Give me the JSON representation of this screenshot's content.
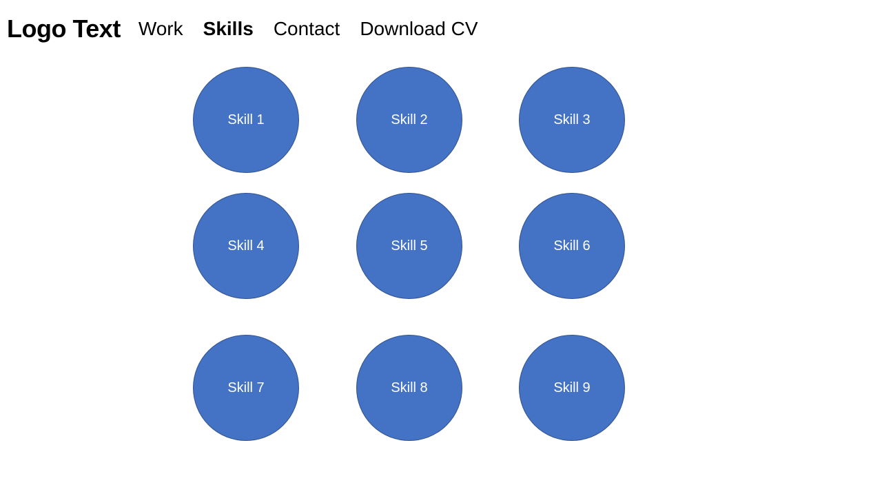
{
  "header": {
    "logo": "Logo Text",
    "nav": [
      {
        "label": "Work"
      },
      {
        "label": "Skills",
        "active": true
      },
      {
        "label": "Contact"
      },
      {
        "label": "Download CV"
      }
    ]
  },
  "skills": [
    {
      "label": "Skill 1"
    },
    {
      "label": "Skill 2"
    },
    {
      "label": "Skill 3"
    },
    {
      "label": "Skill 4"
    },
    {
      "label": "Skill 5"
    },
    {
      "label": "Skill 6"
    },
    {
      "label": "Skill 7"
    },
    {
      "label": "Skill 8"
    },
    {
      "label": "Skill 9"
    }
  ],
  "colors": {
    "skill_fill": "#4472C4",
    "skill_border": "#2F528F",
    "skill_text": "#FFFFFF",
    "text": "#000000"
  }
}
